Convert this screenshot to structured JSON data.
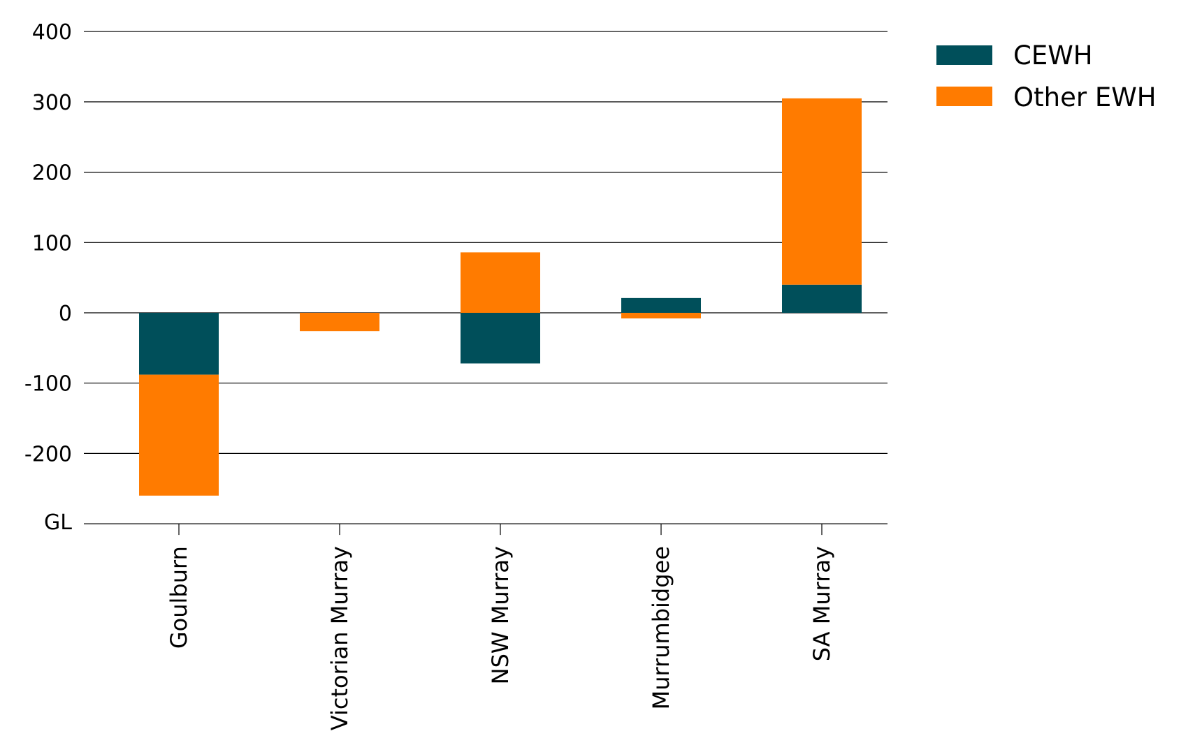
{
  "chart_data": {
    "type": "bar",
    "stacked": true,
    "categories": [
      "Goulburn",
      "Victorian Murray",
      "NSW Murray",
      "Murrumbidgee",
      "SA Murray"
    ],
    "series": [
      {
        "name": "CEWH",
        "color": "#004F5A",
        "values": [
          -88,
          0,
          -72,
          21,
          40
        ]
      },
      {
        "name": "Other EWH",
        "color": "#FF7B00",
        "values": [
          -172,
          -26,
          86,
          -8,
          265
        ]
      }
    ],
    "yticks": [
      "400",
      "300",
      "200",
      "100",
      "0",
      "-100",
      "-200"
    ],
    "ytick_values": [
      400,
      300,
      200,
      100,
      0,
      -100,
      -200
    ],
    "ylabel": "GL",
    "ylim": [
      -300,
      400
    ],
    "grid": true,
    "legend_position": "top-right"
  }
}
